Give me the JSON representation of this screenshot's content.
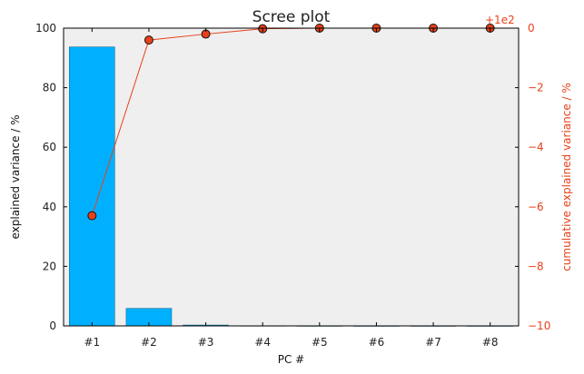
{
  "chart_data": {
    "type": "bar",
    "title": "Scree plot",
    "xlabel": "PC #",
    "ylabel": "explained variance / %",
    "y2label": "cumulative explained variance / %",
    "y2_offset_text": "+1e2",
    "categories": [
      "#1",
      "#2",
      "#3",
      "#4",
      "#5",
      "#6",
      "#7",
      "#8"
    ],
    "ylim": [
      0,
      100
    ],
    "yticks": [
      "0",
      "20",
      "40",
      "60",
      "80",
      "100"
    ],
    "y2lim": [
      -10,
      0
    ],
    "y2ticks": [
      "−10",
      "−8",
      "−6",
      "−4",
      "−2",
      "0"
    ],
    "series": [
      {
        "kind": "bar",
        "values": [
          93.7,
          5.9,
          0.3,
          0.05,
          0.02,
          0.01,
          0.01,
          0.01
        ],
        "color": "#00b0ff"
      },
      {
        "kind": "line",
        "axis": "right",
        "values": [
          -6.3,
          -0.4,
          -0.2,
          -0.02,
          0.0,
          0.0,
          0.0,
          0.0
        ],
        "color": "#e8411a"
      }
    ],
    "plot_background": "#efefef",
    "grid": false
  }
}
